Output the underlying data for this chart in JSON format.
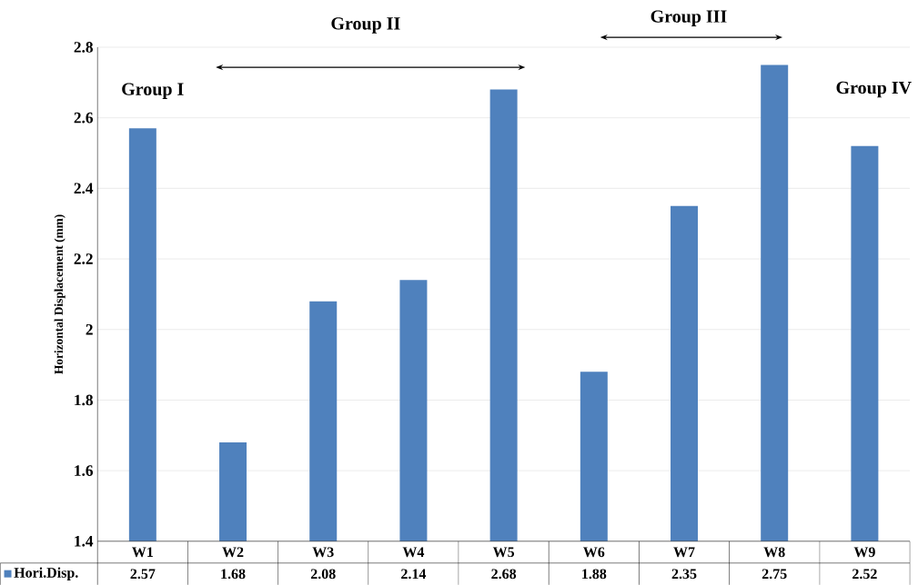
{
  "chart_data": {
    "type": "bar",
    "ylabel": "Horizontal  Displacement (mm)",
    "categories": [
      "W1",
      "W2",
      "W3",
      "W4",
      "W5",
      "W6",
      "W7",
      "W8",
      "W9"
    ],
    "series": [
      {
        "name": "Hori.Disp.",
        "color": "#4f81bd",
        "values": [
          2.57,
          1.68,
          2.08,
          2.14,
          2.68,
          1.88,
          2.35,
          2.75,
          2.52
        ]
      }
    ],
    "ylim": [
      1.4,
      2.8
    ],
    "yticks": [
      1.4,
      1.6,
      1.8,
      2,
      2.2,
      2.4,
      2.6,
      2.8
    ],
    "grid": "y",
    "data_labels": true,
    "legend": "bottom",
    "annotations": [
      "Group I",
      "Group II",
      "Group III",
      "Group IV"
    ]
  }
}
